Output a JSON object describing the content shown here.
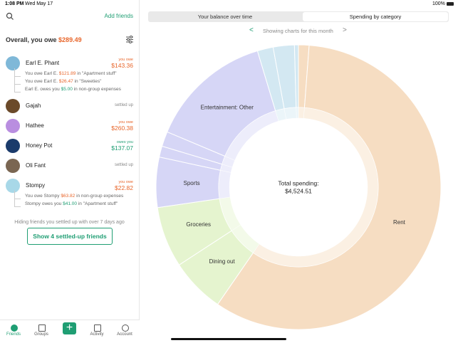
{
  "status_bar": {
    "time": "1:08 PM",
    "date": "Wed May 17",
    "battery": "100%"
  },
  "sidebar": {
    "add_friends": "Add friends",
    "overall_label": "Overall, you owe",
    "overall_amount": "$289.49",
    "friends": [
      {
        "name": "Earl E. Phant",
        "status": "you owe",
        "amount": "$143.36",
        "details": [
          {
            "prefix": "You owe Earl E.",
            "amount": "$121.89",
            "suffix": "in \"Apartment stuff\""
          },
          {
            "prefix": "You owe Earl E.",
            "amount": "$26.47",
            "suffix": "in \"Sweeties\""
          },
          {
            "prefix": "Earl E. owes you",
            "amount": "$5.00",
            "suffix": "in non-group expenses"
          }
        ]
      },
      {
        "name": "Gajah",
        "status": "settled up"
      },
      {
        "name": "Hathee",
        "status": "you owe",
        "amount": "$260.38"
      },
      {
        "name": "Honey Pot",
        "status": "owes you",
        "amount": "$137.07"
      },
      {
        "name": "Oli Fant",
        "status": "settled up"
      },
      {
        "name": "Stompy",
        "status": "you owe",
        "amount": "$22.82",
        "details": [
          {
            "prefix": "You owe Stompy",
            "amount": "$63.82",
            "suffix": "in non-group expenses"
          },
          {
            "prefix": "Stompy owes you",
            "amount": "$41.00",
            "suffix": "in \"Apartment stuff\""
          }
        ]
      }
    ],
    "hidden_note": "Hiding friends you settled up with over 7 days ago",
    "show_button": "Show 4 settled-up friends"
  },
  "tab_bar": [
    "Friends",
    "Groups",
    "Activity",
    "Account"
  ],
  "chart_tabs": [
    "Your balance over time",
    "Spending by category"
  ],
  "period": "Showing charts for this month",
  "total_label": "Total spending:",
  "total_amount": "$4,524.51",
  "chart_data": {
    "type": "pie",
    "categories": [
      null,
      "Rent",
      "Dining out",
      "Groceries",
      "Sports",
      null,
      null,
      "Entertainment: Other",
      null,
      null,
      null
    ],
    "values": [
      1.2,
      58.4,
      6.2,
      6.9,
      5.7,
      1.25,
      1.7,
      14.0,
      1.8,
      2.4,
      0.45
    ],
    "colors": [
      "#f6ddc2",
      "#f6ddc2",
      "#e5f4cf",
      "#e5f4cf",
      "#d6d6f6",
      "#d6d6f6",
      "#d6d6f6",
      "#d6d6f6",
      "#d3e8f2",
      "#d3e8f2",
      "#d3e8f2"
    ]
  }
}
